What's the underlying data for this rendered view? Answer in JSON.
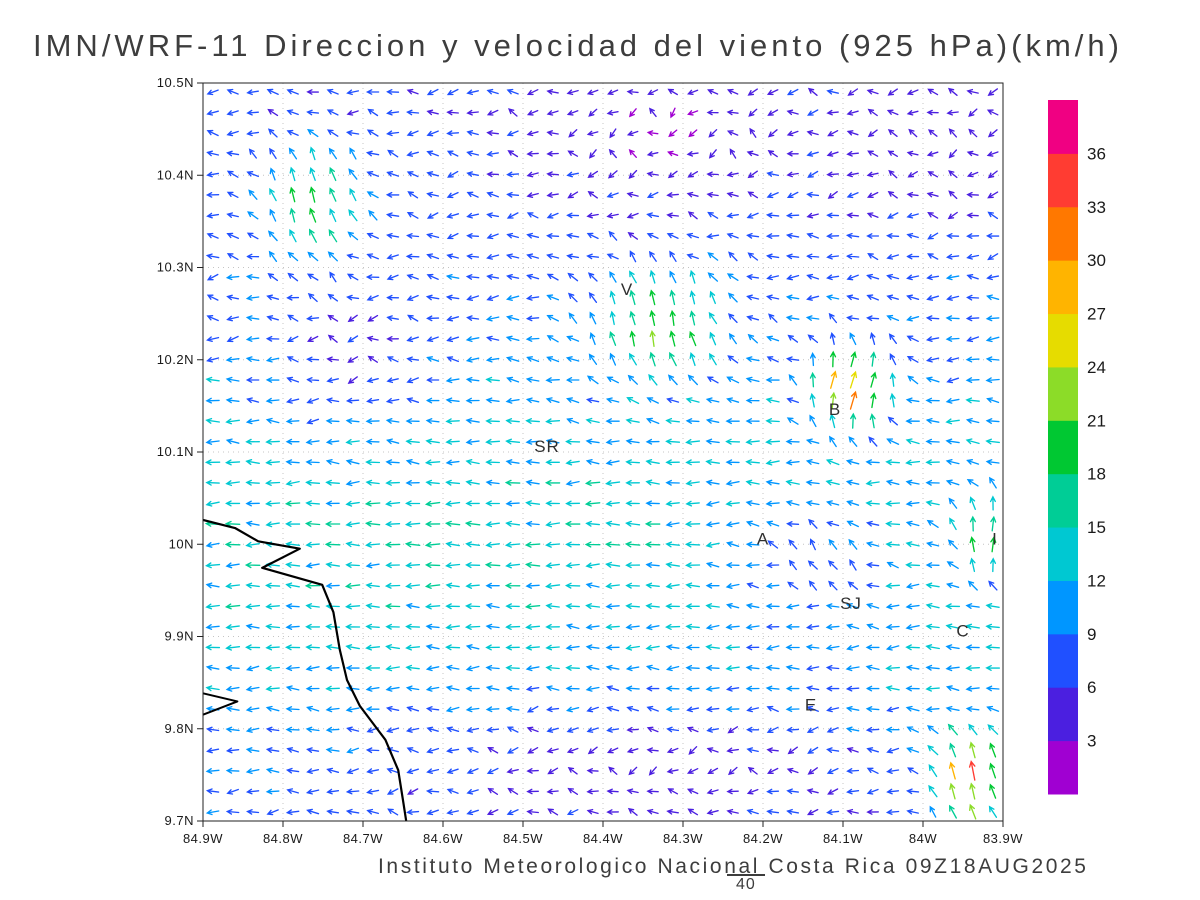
{
  "title": "IMN/WRF-11 Direccion y velocidad del viento (925 hPa)(km/h)",
  "footer": {
    "credit": "Instituto Meteorologico Nacional Costa Rica 09Z18AUG2025",
    "reference_label": "40"
  },
  "axes": {
    "x_tick_labels": [
      "84.9W",
      "84.8W",
      "84.7W",
      "84.6W",
      "84.5W",
      "84.4W",
      "84.3W",
      "84.2W",
      "84.1W",
      "84W",
      "83.9W"
    ],
    "y_tick_labels": [
      "10.5N",
      "10.4N",
      "10.3N",
      "10.2N",
      "10.1N",
      "10N",
      "9.9N",
      "9.8N",
      "9.7N"
    ]
  },
  "colorbar": {
    "levels": [
      3,
      6,
      9,
      12,
      15,
      18,
      21,
      24,
      27,
      30,
      33,
      36
    ],
    "colors": [
      "#a000d2",
      "#4b1fe0",
      "#2050ff",
      "#0096ff",
      "#00c8d2",
      "#00cd96",
      "#00c832",
      "#8cdc28",
      "#e6dc00",
      "#ffb400",
      "#ff7800",
      "#ff3c32",
      "#f00082"
    ]
  },
  "stations": [
    {
      "label": "V",
      "lon": 84.37,
      "lat": 10.27
    },
    {
      "label": "B",
      "lon": 84.11,
      "lat": 10.14
    },
    {
      "label": "SR",
      "lon": 84.47,
      "lat": 10.1
    },
    {
      "label": "A",
      "lon": 84.2,
      "lat": 10.0
    },
    {
      "label": "SJ",
      "lon": 84.09,
      "lat": 9.93
    },
    {
      "label": "C",
      "lon": 83.95,
      "lat": 9.9
    },
    {
      "label": "E",
      "lon": 84.14,
      "lat": 9.82
    },
    {
      "label": "I",
      "lon": 83.91,
      "lat": 10.0
    }
  ],
  "map": {
    "coastline": [
      [
        0.0,
        0.592
      ],
      [
        0.04,
        0.603
      ],
      [
        0.069,
        0.621
      ],
      [
        0.121,
        0.631
      ],
      [
        0.074,
        0.657
      ],
      [
        0.149,
        0.68
      ],
      [
        0.163,
        0.717
      ],
      [
        0.171,
        0.768
      ],
      [
        0.18,
        0.809
      ],
      [
        0.196,
        0.844
      ],
      [
        0.228,
        0.89
      ],
      [
        0.244,
        0.931
      ],
      [
        0.25,
        0.972
      ],
      [
        0.254,
        1.0
      ]
    ],
    "island": [
      [
        0.0,
        0.827
      ],
      [
        0.043,
        0.838
      ],
      [
        0.0,
        0.856
      ]
    ]
  },
  "chart_data": {
    "type": "vector_field",
    "title": "IMN/WRF-11 Direccion y velocidad del viento (925 hPa)(km/h)",
    "model": "IMN/WRF-11",
    "variable": "wind direction and speed",
    "level": "925 hPa",
    "units": "km/h",
    "valid_time": "09Z18AUG2025",
    "lon_range_w": [
      84.9,
      83.9
    ],
    "lat_range_n": [
      9.7,
      10.5
    ],
    "x_tick_labels": [
      "84.9W",
      "84.8W",
      "84.7W",
      "84.6W",
      "84.5W",
      "84.4W",
      "84.3W",
      "84.2W",
      "84.1W",
      "84W",
      "83.9W"
    ],
    "y_tick_labels": [
      "10.5N",
      "10.4N",
      "10.3N",
      "10.2N",
      "10.1N",
      "10N",
      "9.9N",
      "9.8N",
      "9.7N"
    ],
    "speed_levels_kmh": [
      3,
      6,
      9,
      12,
      15,
      18,
      21,
      24,
      27,
      30,
      33,
      36
    ],
    "palette": [
      "#a000d2",
      "#4b1fe0",
      "#2050ff",
      "#0096ff",
      "#00c8d2",
      "#00cd96",
      "#00c832",
      "#8cdc28",
      "#e6dc00",
      "#ffb400",
      "#ff7800",
      "#ff3c32",
      "#f00082"
    ],
    "grid": {
      "ncols": 40,
      "nrows": 36
    },
    "base_flow": {
      "u": -7,
      "u_band_amp": -7,
      "band_lat": 10.0,
      "band_width": 0.22
    },
    "features": [
      {
        "name": "nw-updraft",
        "lon": 84.76,
        "lat": 10.37,
        "rlon": 0.07,
        "rlat": 0.07,
        "du": 2,
        "dv": 19
      },
      {
        "name": "central-updraft",
        "lon": 84.33,
        "lat": 10.24,
        "rlon": 0.1,
        "rlat": 0.07,
        "du": 6,
        "dv": 20
      },
      {
        "name": "strong-jet",
        "lon": 84.09,
        "lat": 10.17,
        "rlon": 0.055,
        "rlat": 0.05,
        "du": 20,
        "dv": 30
      },
      {
        "name": "valley-updraft",
        "lon": 84.12,
        "lat": 9.99,
        "rlon": 0.07,
        "rlat": 0.05,
        "du": 6,
        "dv": 10
      },
      {
        "name": "east-edge-jet",
        "lon": 83.91,
        "lat": 10.01,
        "rlon": 0.06,
        "rlat": 0.06,
        "du": 16,
        "dv": 20
      },
      {
        "name": "se-corner-jet",
        "lon": 83.94,
        "lat": 9.75,
        "rlon": 0.05,
        "rlat": 0.05,
        "du": 2,
        "dv": 34
      }
    ],
    "calm_zones": [
      {
        "lon": 84.32,
        "lat": 10.45,
        "rlon": 0.17,
        "rlat": 0.07,
        "damp": 0.65
      },
      {
        "lon": 83.99,
        "lat": 10.42,
        "rlon": 0.1,
        "rlat": 0.08,
        "damp": 0.55
      },
      {
        "lon": 84.72,
        "lat": 10.2,
        "rlon": 0.1,
        "rlat": 0.08,
        "damp": 0.5
      },
      {
        "lon": 84.35,
        "lat": 9.76,
        "rlon": 0.3,
        "rlat": 0.07,
        "damp": 0.55
      },
      {
        "lon": 84.15,
        "lat": 9.97,
        "rlon": 0.12,
        "rlat": 0.1,
        "damp": 0.35
      }
    ],
    "stations": [
      {
        "label": "V",
        "lon_w": 84.37,
        "lat_n": 10.27
      },
      {
        "label": "B",
        "lon_w": 84.11,
        "lat_n": 10.14
      },
      {
        "label": "SR",
        "lon_w": 84.47,
        "lat_n": 10.1
      },
      {
        "label": "A",
        "lon_w": 84.2,
        "lat_n": 10.0
      },
      {
        "label": "SJ",
        "lon_w": 84.09,
        "lat_n": 9.93
      },
      {
        "label": "C",
        "lon_w": 83.95,
        "lat_n": 9.9
      },
      {
        "label": "E",
        "lon_w": 84.14,
        "lat_n": 9.82
      },
      {
        "label": "I",
        "lon_w": 83.91,
        "lat_n": 10.0
      }
    ],
    "legend_position": "right",
    "grid_lines": "dotted"
  }
}
